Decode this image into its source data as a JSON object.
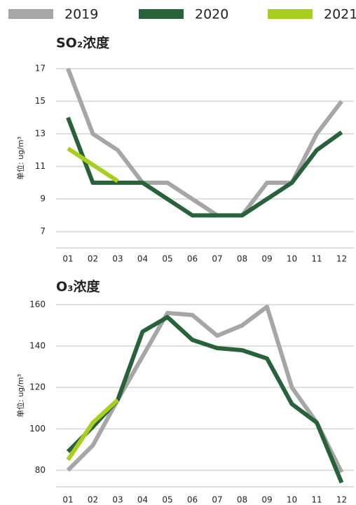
{
  "legend": [
    {
      "name": "2019",
      "color": "#a6a6a6"
    },
    {
      "name": "2020",
      "color": "#28623a"
    },
    {
      "name": "2021",
      "color": "#a8cf1d"
    }
  ],
  "chart_data": [
    {
      "type": "line",
      "title": "SO₂浓度",
      "y_label": "单位: ug/m³",
      "categories": [
        "01",
        "02",
        "03",
        "04",
        "05",
        "06",
        "07",
        "08",
        "09",
        "10",
        "11",
        "12"
      ],
      "series": [
        {
          "values": [
            17,
            13,
            12,
            10,
            10,
            9,
            8,
            8,
            10,
            10,
            13,
            15
          ]
        },
        {
          "values": [
            14,
            10,
            10,
            10,
            9,
            8,
            8,
            8,
            9,
            10,
            12,
            13.1
          ]
        },
        {
          "values": [
            12.1,
            11.1,
            10.1,
            null,
            null,
            null,
            null,
            null,
            null,
            null,
            null,
            null
          ]
        }
      ],
      "ylim": [
        6,
        17.5
      ],
      "yticks": [
        7,
        9,
        11,
        13,
        15,
        17
      ],
      "grid": true
    },
    {
      "type": "line",
      "title": "O₃浓度",
      "y_label": "单位: ug/m³",
      "categories": [
        "01",
        "02",
        "03",
        "04",
        "05",
        "06",
        "07",
        "08",
        "09",
        "10",
        "11",
        "12"
      ],
      "series": [
        {
          "values": [
            80,
            92,
            114,
            135,
            156,
            155,
            145,
            150,
            159,
            120,
            103,
            79
          ]
        },
        {
          "values": [
            89,
            101,
            114,
            147,
            154,
            143,
            139,
            138,
            134,
            112,
            103,
            74
          ]
        },
        {
          "values": [
            85,
            103,
            114,
            null,
            null,
            null,
            null,
            null,
            null,
            null,
            null,
            null
          ]
        }
      ],
      "ylim": [
        72,
        161
      ],
      "yticks": [
        80,
        100,
        120,
        140,
        160
      ],
      "grid": true
    }
  ]
}
